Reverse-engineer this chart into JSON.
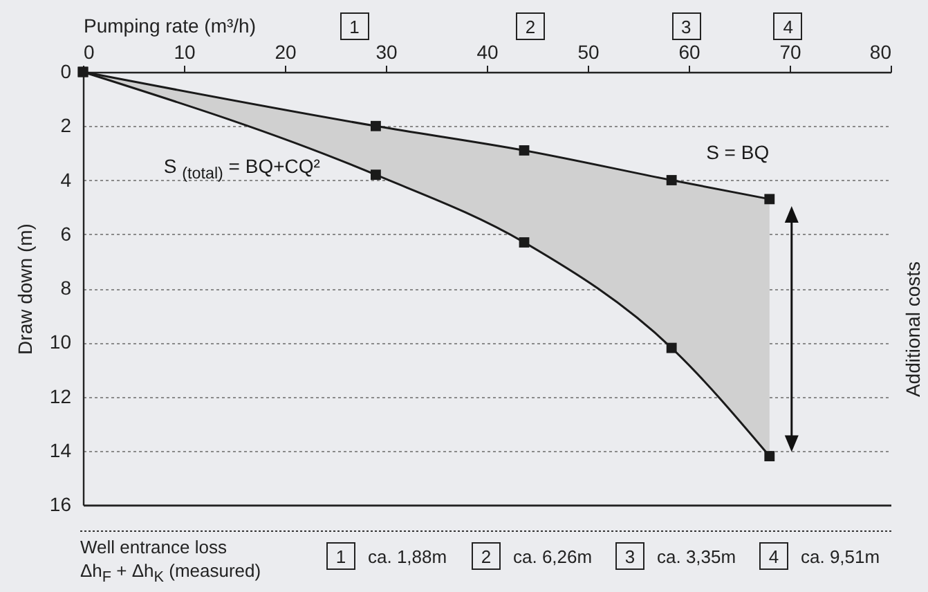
{
  "chart_data": {
    "type": "line",
    "xlabel": "Pumping rate (m³/h)",
    "ylabel": "Draw down (m)",
    "x": [
      0,
      29,
      43.7,
      58.3,
      68
    ],
    "series": [
      {
        "name": "S = BQ",
        "color": "#1a1a1a",
        "values": [
          0,
          2,
          2.9,
          4,
          4.7
        ]
      },
      {
        "name": "S $_{(total)}$ = BQ+CQ²",
        "color": "#1a1a1a",
        "values": [
          0,
          3.8,
          6.3,
          10.2,
          14.2
        ],
        "lower": [
          0,
          2,
          2.9,
          4,
          4.7
        ],
        "upper": [
          0,
          3.8,
          6.3,
          10.2,
          14.2
        ]
      }
    ],
    "xlim": [
      0,
      80
    ],
    "xticks": [
      0,
      10,
      20,
      30,
      40,
      50,
      60,
      70,
      80
    ],
    "ylim": [
      16,
      0
    ],
    "yticks": [
      0,
      2,
      4,
      6,
      8,
      10,
      12,
      14,
      16
    ],
    "grid": "y",
    "marker": "square",
    "line_style": "solid",
    "annotations": [
      "1",
      "2",
      "3",
      "4",
      "Additional costs",
      "Well entrance loss",
      "Δh$_{F}$ + Δh$_{K}$ (measured)",
      "1",
      "ca. 1,88m",
      "2",
      "ca. 6,26m",
      "3",
      "ca. 3,35m",
      "4",
      "ca. 9,51m"
    ]
  }
}
